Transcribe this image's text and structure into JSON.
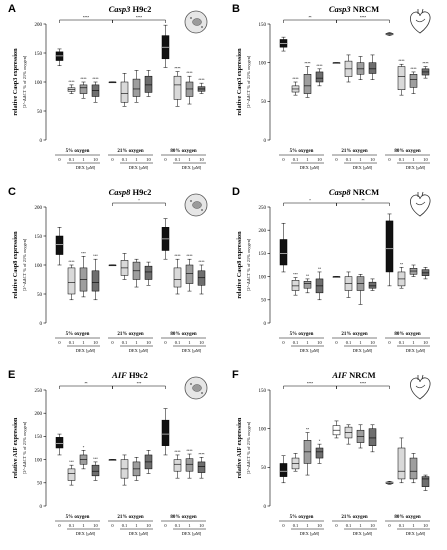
{
  "figure": {
    "x_groups": [
      "5% oxygen",
      "21% oxygen",
      "80% oxygen"
    ],
    "dose_ticks": [
      "0",
      "0.1",
      "1",
      "10"
    ],
    "dose_label": "DEX [µM]",
    "y_sublabel": "[2^-ΔΔCT % of 21% oxygen]",
    "colors": {
      "dex0_hypoxia": "#111111",
      "dex0_normoxia": "#ffffff",
      "dex0_hyperoxia": "#111111",
      "dex01": "#d9d9d9",
      "dex1": "#9e9e9e",
      "dex10": "#6e6e6e",
      "outline": "#000000"
    },
    "icons": {
      "h9c2": "cell-icon",
      "nrcm": "heart-icon"
    }
  },
  "chart_data": [
    {
      "panel": "A",
      "type": "box",
      "gene": "Casp3",
      "cell": "H9c2",
      "icon": "cell-icon",
      "ylabel": "relative Casp3 expression",
      "ylim": [
        0,
        200
      ],
      "yticks": [
        0,
        50,
        100,
        150,
        200
      ],
      "brackets": [
        {
          "from": 0,
          "to": 4,
          "label": "****"
        },
        {
          "from": 4,
          "to": 8,
          "label": "****"
        }
      ],
      "boxes": [
        {
          "group": 0,
          "dose": "0",
          "min": 128,
          "q1": 137,
          "median": 145,
          "q3": 152,
          "max": 157,
          "sig": ""
        },
        {
          "group": 0,
          "dose": "0.1",
          "min": 80,
          "q1": 84,
          "median": 87,
          "q3": 90,
          "max": 95,
          "sig": "****"
        },
        {
          "group": 0,
          "dose": "1",
          "min": 72,
          "q1": 80,
          "median": 90,
          "q3": 95,
          "max": 100,
          "sig": "****"
        },
        {
          "group": 0,
          "dose": "10",
          "min": 65,
          "q1": 75,
          "median": 85,
          "q3": 95,
          "max": 100,
          "sig": "****"
        },
        {
          "group": 1,
          "dose": "0",
          "min": 100,
          "q1": 100,
          "median": 100,
          "q3": 100,
          "max": 100,
          "sig": ""
        },
        {
          "group": 1,
          "dose": "0.1",
          "min": 58,
          "q1": 65,
          "median": 80,
          "q3": 100,
          "max": 115,
          "sig": ""
        },
        {
          "group": 1,
          "dose": "1",
          "min": 65,
          "q1": 75,
          "median": 88,
          "q3": 105,
          "max": 120,
          "sig": ""
        },
        {
          "group": 1,
          "dose": "10",
          "min": 75,
          "q1": 82,
          "median": 95,
          "q3": 110,
          "max": 120,
          "sig": ""
        },
        {
          "group": 2,
          "dose": "0",
          "min": 125,
          "q1": 140,
          "median": 160,
          "q3": 180,
          "max": 198,
          "sig": ""
        },
        {
          "group": 2,
          "dose": "0.1",
          "min": 58,
          "q1": 70,
          "median": 95,
          "q3": 110,
          "max": 118,
          "sig": "****"
        },
        {
          "group": 2,
          "dose": "1",
          "min": 62,
          "q1": 75,
          "median": 88,
          "q3": 100,
          "max": 110,
          "sig": "****"
        },
        {
          "group": 2,
          "dose": "10",
          "min": 80,
          "q1": 84,
          "median": 88,
          "q3": 92,
          "max": 98,
          "sig": "****"
        }
      ]
    },
    {
      "panel": "B",
      "type": "box",
      "gene": "Casp3",
      "cell": "NRCM",
      "icon": "heart-icon",
      "ylabel": "relative Casp3 expression",
      "ylim": [
        0,
        150
      ],
      "yticks": [
        0,
        50,
        100,
        150
      ],
      "brackets": [
        {
          "from": 0,
          "to": 4,
          "label": "**"
        },
        {
          "from": 4,
          "to": 8,
          "label": "****"
        }
      ],
      "boxes": [
        {
          "group": 0,
          "dose": "0",
          "min": 115,
          "q1": 120,
          "median": 125,
          "q3": 130,
          "max": 133,
          "sig": ""
        },
        {
          "group": 0,
          "dose": "0.1",
          "min": 58,
          "q1": 62,
          "median": 66,
          "q3": 70,
          "max": 75,
          "sig": "****"
        },
        {
          "group": 0,
          "dose": "1",
          "min": 55,
          "q1": 60,
          "median": 70,
          "q3": 85,
          "max": 95,
          "sig": "****"
        },
        {
          "group": 0,
          "dose": "10",
          "min": 70,
          "q1": 75,
          "median": 80,
          "q3": 88,
          "max": 92,
          "sig": "****"
        },
        {
          "group": 1,
          "dose": "0",
          "min": 100,
          "q1": 100,
          "median": 100,
          "q3": 100,
          "max": 100,
          "sig": ""
        },
        {
          "group": 1,
          "dose": "0.1",
          "min": 75,
          "q1": 82,
          "median": 92,
          "q3": 102,
          "max": 110,
          "sig": ""
        },
        {
          "group": 1,
          "dose": "1",
          "min": 78,
          "q1": 85,
          "median": 92,
          "q3": 100,
          "max": 108,
          "sig": ""
        },
        {
          "group": 1,
          "dose": "10",
          "min": 78,
          "q1": 86,
          "median": 92,
          "q3": 100,
          "max": 110,
          "sig": ""
        },
        {
          "group": 2,
          "dose": "0",
          "min": 135,
          "q1": 136,
          "median": 137,
          "q3": 138,
          "max": 139,
          "sig": ""
        },
        {
          "group": 2,
          "dose": "0.1",
          "min": 58,
          "q1": 65,
          "median": 82,
          "q3": 95,
          "max": 98,
          "sig": "****"
        },
        {
          "group": 2,
          "dose": "1",
          "min": 60,
          "q1": 68,
          "median": 78,
          "q3": 85,
          "max": 88,
          "sig": "****"
        },
        {
          "group": 2,
          "dose": "10",
          "min": 80,
          "q1": 84,
          "median": 88,
          "q3": 92,
          "max": 95,
          "sig": "****"
        }
      ]
    },
    {
      "panel": "C",
      "type": "box",
      "gene": "Casp8",
      "cell": "H9c2",
      "icon": "cell-icon",
      "ylabel": "relative Casp8 expression",
      "ylim": [
        0,
        200
      ],
      "yticks": [
        0,
        50,
        100,
        150,
        200
      ],
      "brackets": [
        {
          "from": 4,
          "to": 8,
          "label": "*"
        }
      ],
      "boxes": [
        {
          "group": 0,
          "dose": "0",
          "min": 100,
          "q1": 118,
          "median": 135,
          "q3": 150,
          "max": 165,
          "sig": ""
        },
        {
          "group": 0,
          "dose": "0.1",
          "min": 40,
          "q1": 50,
          "median": 70,
          "q3": 95,
          "max": 100,
          "sig": "****"
        },
        {
          "group": 0,
          "dose": "1",
          "min": 45,
          "q1": 55,
          "median": 75,
          "q3": 95,
          "max": 115,
          "sig": "***"
        },
        {
          "group": 0,
          "dose": "10",
          "min": 40,
          "q1": 55,
          "median": 70,
          "q3": 90,
          "max": 110,
          "sig": "***"
        },
        {
          "group": 1,
          "dose": "0",
          "min": 100,
          "q1": 100,
          "median": 100,
          "q3": 100,
          "max": 100,
          "sig": ""
        },
        {
          "group": 1,
          "dose": "0.1",
          "min": 75,
          "q1": 82,
          "median": 95,
          "q3": 108,
          "max": 120,
          "sig": ""
        },
        {
          "group": 1,
          "dose": "1",
          "min": 62,
          "q1": 75,
          "median": 90,
          "q3": 105,
          "max": 110,
          "sig": ""
        },
        {
          "group": 1,
          "dose": "10",
          "min": 65,
          "q1": 75,
          "median": 88,
          "q3": 98,
          "max": 105,
          "sig": ""
        },
        {
          "group": 2,
          "dose": "0",
          "min": 110,
          "q1": 125,
          "median": 145,
          "q3": 165,
          "max": 180,
          "sig": ""
        },
        {
          "group": 2,
          "dose": "0.1",
          "min": 50,
          "q1": 62,
          "median": 75,
          "q3": 95,
          "max": 110,
          "sig": "****"
        },
        {
          "group": 2,
          "dose": "1",
          "min": 55,
          "q1": 68,
          "median": 85,
          "q3": 100,
          "max": 110,
          "sig": "****"
        },
        {
          "group": 2,
          "dose": "10",
          "min": 50,
          "q1": 65,
          "median": 78,
          "q3": 90,
          "max": 100,
          "sig": "****"
        }
      ]
    },
    {
      "panel": "D",
      "type": "box",
      "gene": "Casp8",
      "cell": "NRCM",
      "icon": "heart-icon",
      "ylabel": "relative Casp8 expression",
      "ylim": [
        0,
        250
      ],
      "yticks": [
        0,
        50,
        100,
        150,
        200,
        250
      ],
      "brackets": [
        {
          "from": 0,
          "to": 4,
          "label": "*"
        },
        {
          "from": 4,
          "to": 8,
          "label": "**"
        }
      ],
      "boxes": [
        {
          "group": 0,
          "dose": "0",
          "min": 110,
          "q1": 125,
          "median": 150,
          "q3": 180,
          "max": 215,
          "sig": ""
        },
        {
          "group": 0,
          "dose": "0.1",
          "min": 60,
          "q1": 70,
          "median": 80,
          "q3": 92,
          "max": 98,
          "sig": "***"
        },
        {
          "group": 0,
          "dose": "1",
          "min": 65,
          "q1": 75,
          "median": 85,
          "q3": 90,
          "max": 95,
          "sig": "**"
        },
        {
          "group": 0,
          "dose": "10",
          "min": 50,
          "q1": 65,
          "median": 80,
          "q3": 95,
          "max": 110,
          "sig": "**"
        },
        {
          "group": 1,
          "dose": "0",
          "min": 100,
          "q1": 100,
          "median": 100,
          "q3": 100,
          "max": 100,
          "sig": ""
        },
        {
          "group": 1,
          "dose": "0.1",
          "min": 55,
          "q1": 70,
          "median": 85,
          "q3": 100,
          "max": 110,
          "sig": ""
        },
        {
          "group": 1,
          "dose": "1",
          "min": 40,
          "q1": 70,
          "median": 85,
          "q3": 100,
          "max": 105,
          "sig": ""
        },
        {
          "group": 1,
          "dose": "10",
          "min": 70,
          "q1": 75,
          "median": 80,
          "q3": 88,
          "max": 95,
          "sig": ""
        },
        {
          "group": 2,
          "dose": "0",
          "min": 80,
          "q1": 110,
          "median": 160,
          "q3": 220,
          "max": 235,
          "sig": ""
        },
        {
          "group": 2,
          "dose": "0.1",
          "min": 75,
          "q1": 80,
          "median": 95,
          "q3": 110,
          "max": 120,
          "sig": "**"
        },
        {
          "group": 2,
          "dose": "1",
          "min": 100,
          "q1": 105,
          "median": 112,
          "q3": 118,
          "max": 125,
          "sig": ""
        },
        {
          "group": 2,
          "dose": "10",
          "min": 95,
          "q1": 102,
          "median": 108,
          "q3": 115,
          "max": 120,
          "sig": ""
        }
      ]
    },
    {
      "panel": "E",
      "type": "box",
      "gene": "AIF",
      "cell": "H9c2",
      "icon": "cell-icon",
      "ylabel": "relative AIF expression",
      "ylim": [
        0,
        250
      ],
      "yticks": [
        0,
        50,
        100,
        150,
        200,
        250
      ],
      "brackets": [
        {
          "from": 0,
          "to": 4,
          "label": "**"
        },
        {
          "from": 4,
          "to": 8,
          "label": "***"
        }
      ],
      "boxes": [
        {
          "group": 0,
          "dose": "0",
          "min": 110,
          "q1": 125,
          "median": 135,
          "q3": 148,
          "max": 155,
          "sig": ""
        },
        {
          "group": 0,
          "dose": "0.1",
          "min": 45,
          "q1": 55,
          "median": 70,
          "q3": 80,
          "max": 88,
          "sig": "***"
        },
        {
          "group": 0,
          "dose": "1",
          "min": 80,
          "q1": 90,
          "median": 100,
          "q3": 110,
          "max": 120,
          "sig": "*"
        },
        {
          "group": 0,
          "dose": "10",
          "min": 55,
          "q1": 65,
          "median": 75,
          "q3": 88,
          "max": 95,
          "sig": "***"
        },
        {
          "group": 1,
          "dose": "0",
          "min": 100,
          "q1": 100,
          "median": 100,
          "q3": 100,
          "max": 100,
          "sig": ""
        },
        {
          "group": 1,
          "dose": "0.1",
          "min": 45,
          "q1": 60,
          "median": 80,
          "q3": 100,
          "max": 110,
          "sig": ""
        },
        {
          "group": 1,
          "dose": "1",
          "min": 55,
          "q1": 65,
          "median": 80,
          "q3": 95,
          "max": 105,
          "sig": ""
        },
        {
          "group": 1,
          "dose": "10",
          "min": 70,
          "q1": 80,
          "median": 95,
          "q3": 110,
          "max": 120,
          "sig": ""
        },
        {
          "group": 2,
          "dose": "0",
          "min": 110,
          "q1": 130,
          "median": 155,
          "q3": 185,
          "max": 210,
          "sig": ""
        },
        {
          "group": 2,
          "dose": "0.1",
          "min": 60,
          "q1": 75,
          "median": 90,
          "q3": 100,
          "max": 110,
          "sig": "****"
        },
        {
          "group": 2,
          "dose": "1",
          "min": 60,
          "q1": 75,
          "median": 90,
          "q3": 102,
          "max": 112,
          "sig": "****"
        },
        {
          "group": 2,
          "dose": "10",
          "min": 60,
          "q1": 72,
          "median": 85,
          "q3": 95,
          "max": 105,
          "sig": "****"
        }
      ]
    },
    {
      "panel": "F",
      "type": "box",
      "gene": "AIF",
      "cell": "NRCM",
      "icon": "heart-icon",
      "ylabel": "relative AIF expression",
      "ylim": [
        0,
        150
      ],
      "yticks": [
        0,
        50,
        100,
        150
      ],
      "brackets": [
        {
          "from": 0,
          "to": 4,
          "label": "****"
        },
        {
          "from": 4,
          "to": 8,
          "label": "****"
        }
      ],
      "boxes": [
        {
          "group": 0,
          "dose": "0",
          "min": 30,
          "q1": 38,
          "median": 45,
          "q3": 55,
          "max": 65,
          "sig": ""
        },
        {
          "group": 0,
          "dose": "0.1",
          "min": 45,
          "q1": 48,
          "median": 55,
          "q3": 62,
          "max": 68,
          "sig": ""
        },
        {
          "group": 0,
          "dose": "1",
          "min": 40,
          "q1": 55,
          "median": 70,
          "q3": 85,
          "max": 95,
          "sig": "**"
        },
        {
          "group": 0,
          "dose": "10",
          "min": 55,
          "q1": 62,
          "median": 70,
          "q3": 75,
          "max": 80,
          "sig": "*"
        },
        {
          "group": 1,
          "dose": "0",
          "min": 88,
          "q1": 92,
          "median": 98,
          "q3": 104,
          "max": 110,
          "sig": ""
        },
        {
          "group": 1,
          "dose": "0.1",
          "min": 80,
          "q1": 88,
          "median": 95,
          "q3": 102,
          "max": 105,
          "sig": ""
        },
        {
          "group": 1,
          "dose": "1",
          "min": 75,
          "q1": 82,
          "median": 90,
          "q3": 98,
          "max": 105,
          "sig": ""
        },
        {
          "group": 1,
          "dose": "10",
          "min": 70,
          "q1": 78,
          "median": 88,
          "q3": 100,
          "max": 105,
          "sig": ""
        },
        {
          "group": 2,
          "dose": "0",
          "min": 28,
          "q1": 29,
          "median": 30,
          "q3": 31,
          "max": 32,
          "sig": ""
        },
        {
          "group": 2,
          "dose": "0.1",
          "min": 30,
          "q1": 35,
          "median": 45,
          "q3": 75,
          "max": 88,
          "sig": ""
        },
        {
          "group": 2,
          "dose": "1",
          "min": 30,
          "q1": 35,
          "median": 45,
          "q3": 62,
          "max": 68,
          "sig": ""
        },
        {
          "group": 2,
          "dose": "10",
          "min": 20,
          "q1": 25,
          "median": 35,
          "q3": 38,
          "max": 40,
          "sig": ""
        }
      ]
    }
  ]
}
